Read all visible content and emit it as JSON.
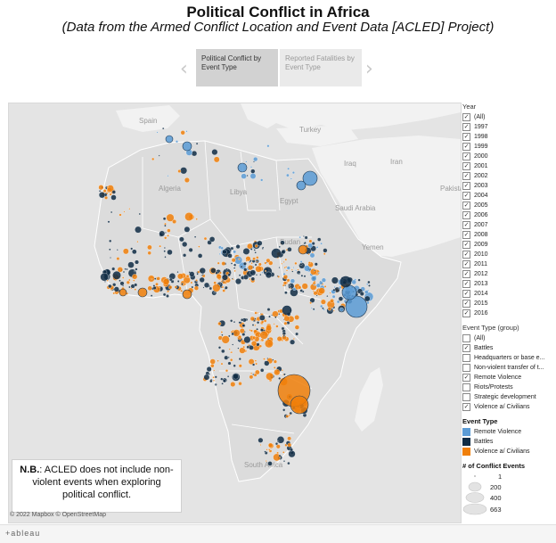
{
  "header": {
    "title": "Political Conflict in Africa",
    "subtitle": "(Data from the Armed Conflict Location and Event Data [ACLED] Project)"
  },
  "story": {
    "points": [
      {
        "label": "Political Conflict by Event Type",
        "active": true
      },
      {
        "label": "Reported Fatalities by Event Type",
        "active": false
      }
    ]
  },
  "map": {
    "labels": {
      "spain": "Spain",
      "turkey": "Turkey",
      "iraq": "Iraq",
      "iran": "Iran",
      "algeria": "Algeria",
      "libya": "Libya",
      "egypt": "Egypt",
      "saudi": "Saudi Arabia",
      "pakistan": "Pakista",
      "sudan": "Sudan",
      "yemen": "Yemen",
      "south_africa": "South Africa"
    },
    "attribution": "© 2022 Mapbox  © OpenStreetMap"
  },
  "note": {
    "bold": "N.B.",
    "text": ": ACLED does not include non-violent events when exploring political conflict."
  },
  "legend": {
    "year": {
      "title": "Year",
      "items": [
        "(All)",
        "1997",
        "1998",
        "1999",
        "2000",
        "2001",
        "2002",
        "2003",
        "2004",
        "2005",
        "2006",
        "2007",
        "2008",
        "2009",
        "2010",
        "2011",
        "2012",
        "2013",
        "2014",
        "2015",
        "2016"
      ],
      "checked": [
        true,
        true,
        true,
        true,
        true,
        true,
        true,
        true,
        true,
        true,
        true,
        true,
        true,
        true,
        true,
        true,
        true,
        true,
        true,
        true,
        true
      ]
    },
    "event_group": {
      "title": "Event Type (group)",
      "items": [
        "(All)",
        "Battles",
        "Headquarters or base e...",
        "Non-violent transfer of t...",
        "Remote Violence",
        "Riots/Protests",
        "Strategic development",
        "Violence a/ Civilians"
      ],
      "checked": [
        false,
        true,
        false,
        false,
        true,
        false,
        false,
        true
      ]
    },
    "event_type": {
      "title": "Event Type",
      "items": [
        {
          "label": "Remote Violence",
          "color": "#5b9bd5"
        },
        {
          "label": "Battles",
          "color": "#0f2b44"
        },
        {
          "label": "Violence a/ Civilians",
          "color": "#f07f09"
        }
      ]
    },
    "size": {
      "title": "# of Conflict Events",
      "values": [
        "1",
        "200",
        "400",
        "663"
      ]
    }
  },
  "footer": {
    "brand": "+ableau"
  }
}
